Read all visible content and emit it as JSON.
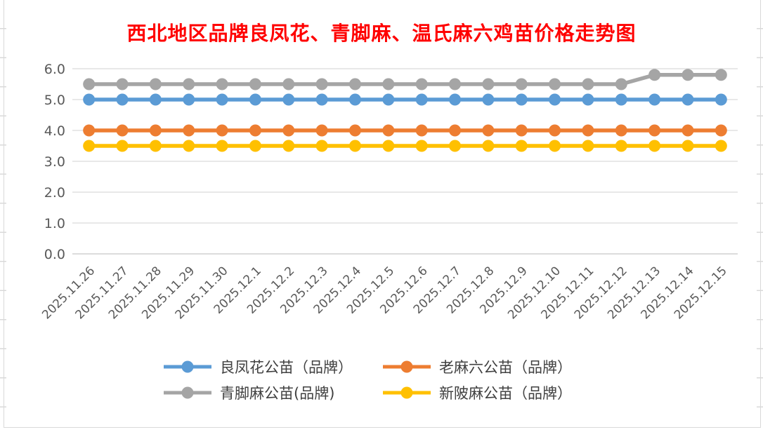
{
  "chart_data": {
    "type": "line",
    "title": "西北地区品牌良凤花、青脚麻、温氏麻六鸡苗价格走势图",
    "title_color": "#ff0000",
    "x": [
      "2025.11.26",
      "2025.11.27",
      "2025.11.28",
      "2025.11.29",
      "2025.11.30",
      "2025.12.1",
      "2025.12.2",
      "2025.12.3",
      "2025.12.4",
      "2025.12.5",
      "2025.12.6",
      "2025.12.7",
      "2025.12.8",
      "2025.12.9",
      "2025.12.10",
      "2025.12.11",
      "2025.12.12",
      "2025.12.13",
      "2025.12.14",
      "2025.12.15"
    ],
    "series": [
      {
        "name": "良凤花公苗（品牌）",
        "color": "#5b9bd5",
        "values": [
          5.0,
          5.0,
          5.0,
          5.0,
          5.0,
          5.0,
          5.0,
          5.0,
          5.0,
          5.0,
          5.0,
          5.0,
          5.0,
          5.0,
          5.0,
          5.0,
          5.0,
          5.0,
          5.0,
          5.0
        ]
      },
      {
        "name": "老麻六公苗（品牌）",
        "color": "#ed7d31",
        "values": [
          4.0,
          4.0,
          4.0,
          4.0,
          4.0,
          4.0,
          4.0,
          4.0,
          4.0,
          4.0,
          4.0,
          4.0,
          4.0,
          4.0,
          4.0,
          4.0,
          4.0,
          4.0,
          4.0,
          4.0
        ]
      },
      {
        "name": "青脚麻公苗(品牌)",
        "color": "#a5a5a5",
        "values": [
          5.5,
          5.5,
          5.5,
          5.5,
          5.5,
          5.5,
          5.5,
          5.5,
          5.5,
          5.5,
          5.5,
          5.5,
          5.5,
          5.5,
          5.5,
          5.5,
          5.5,
          5.8,
          5.8,
          5.8
        ]
      },
      {
        "name": "新陂麻公苗（品牌）",
        "color": "#ffc000",
        "values": [
          3.5,
          3.5,
          3.5,
          3.5,
          3.5,
          3.5,
          3.5,
          3.5,
          3.5,
          3.5,
          3.5,
          3.5,
          3.5,
          3.5,
          3.5,
          3.5,
          3.5,
          3.5,
          3.5,
          3.5
        ]
      }
    ],
    "ylim": [
      0,
      6
    ],
    "ytick_labels": [
      "0.0",
      "1.0",
      "2.0",
      "3.0",
      "4.0",
      "5.0",
      "6.0"
    ],
    "xlabel": "",
    "ylabel": "",
    "grid": true,
    "legend_position": "bottom",
    "legend_rows": [
      [
        0,
        1
      ],
      [
        2,
        3
      ]
    ]
  },
  "style_colors": {
    "gridline": "#d9d9d9",
    "baseline": "#c6c6c6",
    "axis_text": "#595959",
    "frame_border": "#d9d9d9",
    "legend_text": "#404040"
  }
}
